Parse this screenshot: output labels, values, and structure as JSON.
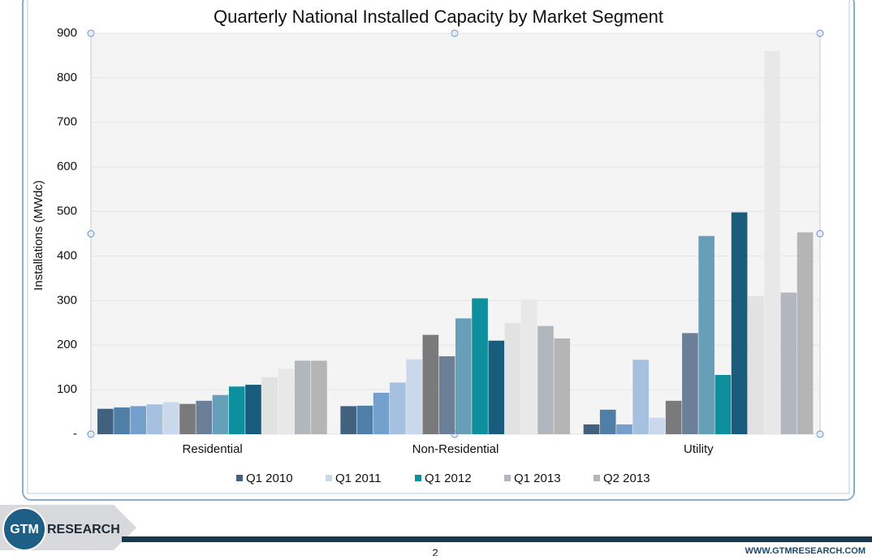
{
  "chart_data": {
    "type": "bar",
    "title": "Quarterly National Installed Capacity by Market Segment",
    "y_label": "Installations (MWdc)",
    "categories": [
      "Residential",
      "Non-Residential",
      "Utility"
    ],
    "series": [
      {
        "name": "Q1 2010",
        "color": "#41617f",
        "values": [
          57,
          63,
          22
        ]
      },
      {
        "color": "#4f7ea6",
        "values": [
          60,
          64,
          55
        ]
      },
      {
        "color": "#73a0cc",
        "values": [
          63,
          93,
          22
        ]
      },
      {
        "color": "#a6c1df",
        "values": [
          67,
          116,
          167
        ]
      },
      {
        "name": "Q1 2011",
        "color": "#c9d8ea",
        "values": [
          72,
          168,
          37
        ]
      },
      {
        "color": "#7a7a7c",
        "values": [
          68,
          223,
          75
        ]
      },
      {
        "color": "#6c7f98",
        "values": [
          75,
          175,
          227
        ]
      },
      {
        "color": "#679fb8",
        "values": [
          88,
          260,
          445
        ]
      },
      {
        "name": "Q1 2012",
        "color": "#0e8f9e",
        "values": [
          107,
          305,
          133
        ]
      },
      {
        "color": "#1a5c7b",
        "values": [
          111,
          210,
          498
        ]
      },
      {
        "color": "#e2e2e2",
        "values": [
          128,
          250,
          310
        ]
      },
      {
        "color": "#e8e8e8",
        "values": [
          147,
          302,
          860
        ]
      },
      {
        "name": "Q1 2013",
        "color": "#b2b6bd",
        "values": [
          165,
          243,
          318
        ]
      },
      {
        "name": "Q2 2013",
        "color": "#b5b5b5",
        "values": [
          165,
          215,
          453
        ]
      }
    ],
    "ylim": [
      0,
      900
    ],
    "yticks": [
      {
        "value": 0,
        "label": "-"
      },
      100,
      200,
      300,
      400,
      500,
      600,
      700,
      800,
      900
    ],
    "grid": true
  },
  "footer": {
    "logo": "GTM",
    "brand": "RESEARCH",
    "url": "WWW.GTMRESEARCH.COM",
    "page": "2"
  }
}
